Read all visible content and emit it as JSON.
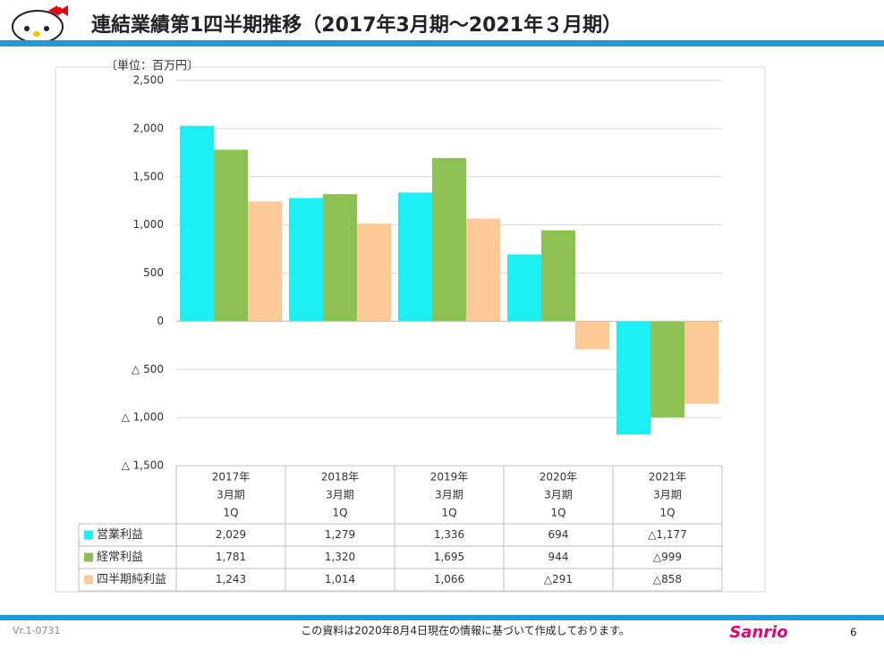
{
  "header": {
    "title": "連結業績第1四半期推移（2017年3月期～2021年３月期）"
  },
  "chart_data": {
    "type": "bar",
    "unit": "〔単位：百万円〕",
    "categories": [
      [
        "2017年",
        "3月期",
        "1Q"
      ],
      [
        "2018年",
        "3月期",
        "1Q"
      ],
      [
        "2019年",
        "3月期",
        "1Q"
      ],
      [
        "2020年",
        "3月期",
        "1Q"
      ],
      [
        "2021年",
        "3月期",
        "1Q"
      ]
    ],
    "series": [
      {
        "name": "営業利益",
        "color": "#1cf0f4",
        "values": [
          2029,
          1279,
          1336,
          694,
          -1177
        ],
        "value_labels": [
          "2,029",
          "1,279",
          "1,336",
          "694",
          "△1,177"
        ]
      },
      {
        "name": "経常利益",
        "color": "#8dc153",
        "values": [
          1781,
          1320,
          1695,
          944,
          -999
        ],
        "value_labels": [
          "1,781",
          "1,320",
          "1,695",
          "944",
          "△999"
        ]
      },
      {
        "name": "四半期純利益",
        "color": "#fdc995",
        "values": [
          1243,
          1014,
          1066,
          -291,
          -858
        ],
        "value_labels": [
          "1,243",
          "1,014",
          "1,066",
          "△291",
          "△858"
        ]
      }
    ],
    "ylim": [
      -1500,
      2500
    ],
    "yticks": [
      {
        "value": -1500,
        "label": "△ 1,500"
      },
      {
        "value": -1000,
        "label": "△ 1,000"
      },
      {
        "value": -500,
        "label": "△ 500"
      },
      0,
      500,
      {
        "value": 1000,
        "label": "1,000"
      },
      {
        "value": 1500,
        "label": "1,500"
      },
      {
        "value": 2000,
        "label": "2,000"
      },
      {
        "value": 2500,
        "label": "2,500"
      }
    ],
    "grid": true
  },
  "footer": {
    "version": "Vr.1-0731",
    "note": "この資料は2020年8月4日現在の情報に基づいて作成しております。",
    "brand": "Sanrio",
    "page": "6"
  }
}
